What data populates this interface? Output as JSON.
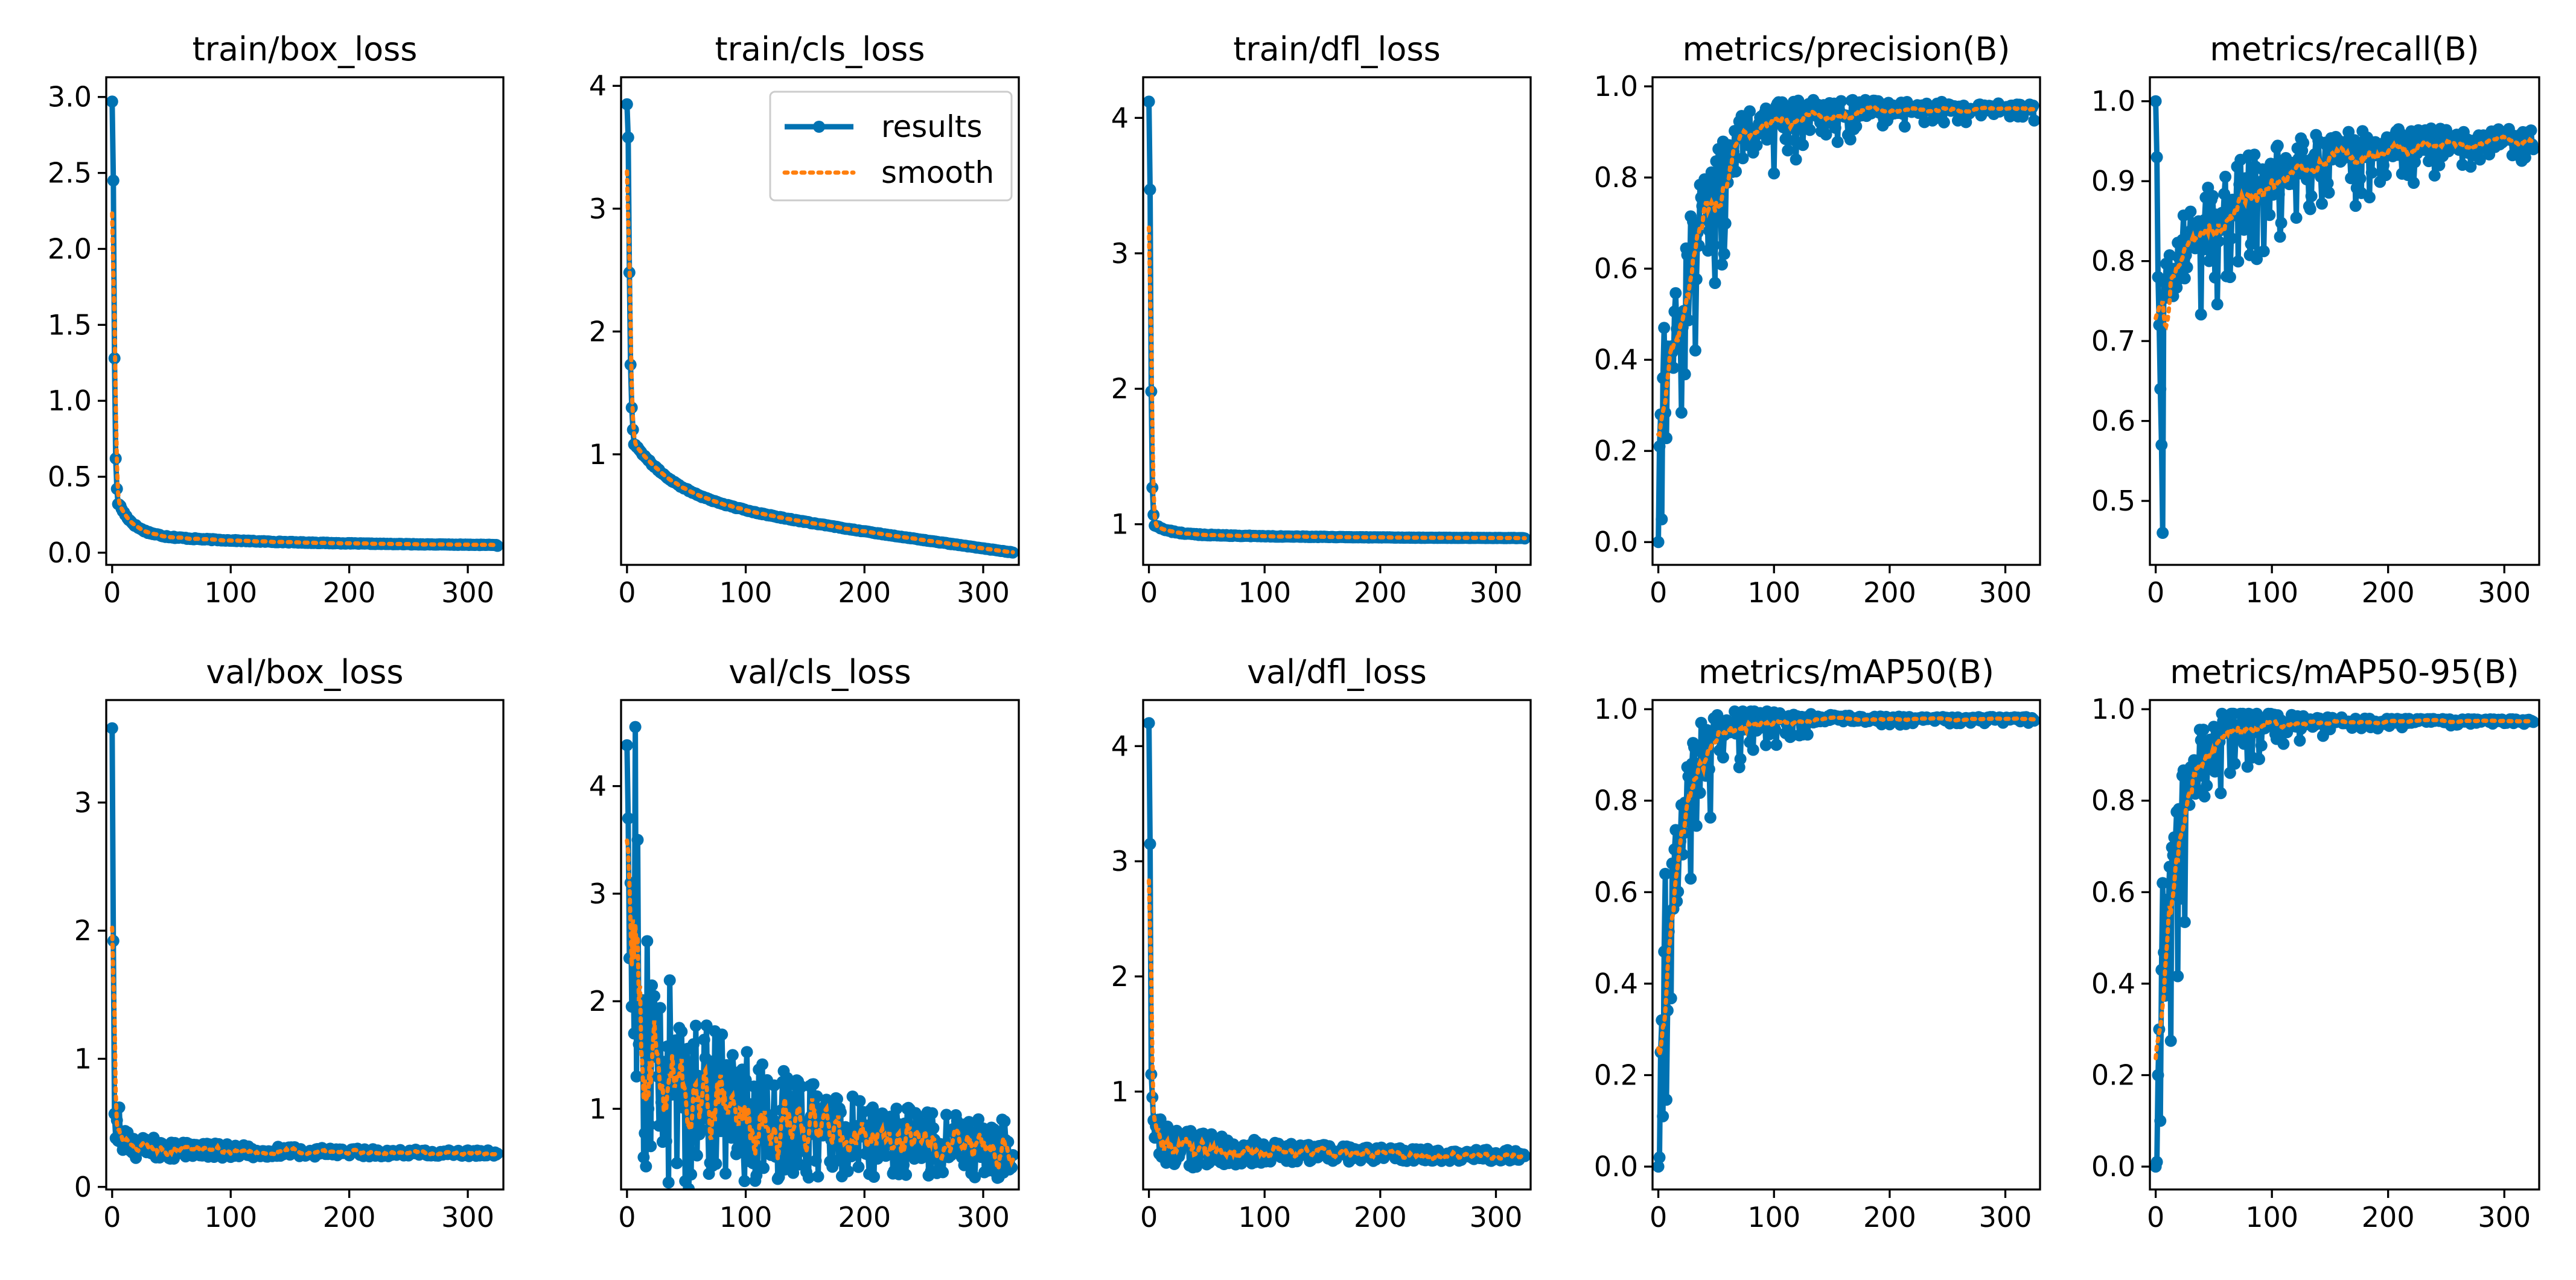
{
  "legend": {
    "results_label": "results",
    "smooth_label": "smooth",
    "results_color": "#0072b2",
    "smooth_color": "#ff7f0e"
  },
  "chart_data": [
    {
      "type": "line",
      "title": "train/box_loss",
      "xlim": [
        -5,
        330
      ],
      "ylim": [
        -0.08,
        3.13
      ],
      "xticks": [
        0,
        100,
        200,
        300
      ],
      "yticks": [
        0.0,
        0.5,
        1.0,
        1.5,
        2.0,
        2.5,
        3.0
      ],
      "ytick_labels": [
        "0.0",
        "0.5",
        "1.0",
        "1.5",
        "2.0",
        "2.5",
        "3.0"
      ],
      "shape": "decay",
      "start": [
        2.97,
        2.45,
        1.28,
        0.62,
        0.42,
        0.32
      ],
      "plateau": 0.12,
      "end": 0.045,
      "noise": 0.004,
      "series": [
        {
          "name": "results"
        },
        {
          "name": "smooth"
        }
      ]
    },
    {
      "type": "line",
      "title": "train/cls_loss",
      "xlim": [
        -5,
        330
      ],
      "ylim": [
        0.1,
        4.07
      ],
      "xticks": [
        0,
        100,
        200,
        300
      ],
      "yticks": [
        1,
        2,
        3,
        4
      ],
      "ytick_labels": [
        "1",
        "2",
        "3",
        "4"
      ],
      "shape": "decay",
      "start": [
        3.85,
        3.58,
        2.48,
        1.73,
        1.38,
        1.2,
        1.08
      ],
      "plateau": 0.72,
      "end": 0.2,
      "noise": 0.005,
      "slow": true,
      "series": [
        {
          "name": "results"
        },
        {
          "name": "smooth"
        }
      ]
    },
    {
      "type": "line",
      "title": "train/dfl_loss",
      "xlim": [
        -5,
        330
      ],
      "ylim": [
        0.7,
        4.3
      ],
      "xticks": [
        0,
        100,
        200,
        300
      ],
      "yticks": [
        1,
        2,
        3,
        4
      ],
      "ytick_labels": [
        "1",
        "2",
        "3",
        "4"
      ],
      "shape": "decay",
      "start": [
        4.12,
        3.47,
        1.98,
        1.27,
        1.07,
        0.99
      ],
      "plateau": 0.93,
      "end": 0.895,
      "noise": 0.003,
      "series": [
        {
          "name": "results"
        },
        {
          "name": "smooth"
        }
      ]
    },
    {
      "type": "line",
      "title": "metrics/precision(B)",
      "xlim": [
        -5,
        330
      ],
      "ylim": [
        -0.05,
        1.02
      ],
      "xticks": [
        0,
        100,
        200,
        300
      ],
      "yticks": [
        0.0,
        0.2,
        0.4,
        0.6,
        0.8,
        1.0
      ],
      "ytick_labels": [
        "0.0",
        "0.2",
        "0.4",
        "0.6",
        "0.8",
        "1.0"
      ],
      "shape": "rise",
      "start": [
        0.0,
        0.21,
        0.28,
        0.05,
        0.36,
        0.47
      ],
      "target": 0.955,
      "k": 30,
      "noise_amp": 0.24,
      "end": 0.925,
      "series": [
        {
          "name": "results"
        },
        {
          "name": "smooth"
        }
      ]
    },
    {
      "type": "line",
      "title": "metrics/recall(B)",
      "xlim": [
        -5,
        330
      ],
      "ylim": [
        0.42,
        1.03
      ],
      "xticks": [
        0,
        100,
        200,
        300
      ],
      "yticks": [
        0.5,
        0.6,
        0.7,
        0.8,
        0.9,
        1.0
      ],
      "ytick_labels": [
        "0.5",
        "0.6",
        "0.7",
        "0.8",
        "0.9",
        "1.0"
      ],
      "shape": "rise",
      "start": [
        1.0,
        0.93,
        0.78,
        0.72,
        0.64,
        0.57,
        0.46
      ],
      "base": 0.76,
      "target": 0.955,
      "k": 60,
      "noise_amp": 0.1,
      "end": 0.94,
      "series": [
        {
          "name": "results"
        },
        {
          "name": "smooth"
        }
      ]
    },
    {
      "type": "line",
      "title": "val/box_loss",
      "xlim": [
        -5,
        330
      ],
      "ylim": [
        -0.02,
        3.8
      ],
      "xticks": [
        0,
        100,
        200,
        300
      ],
      "yticks": [
        0,
        1,
        2,
        3
      ],
      "ytick_labels": [
        "0",
        "1",
        "2",
        "3"
      ],
      "shape": "decay",
      "start": [
        3.58,
        1.92,
        0.57,
        0.38,
        0.52,
        0.36,
        0.62,
        0.35
      ],
      "plateau": 0.3,
      "end": 0.26,
      "noise": 0.06,
      "series": [
        {
          "name": "results"
        },
        {
          "name": "smooth"
        }
      ]
    },
    {
      "type": "line",
      "title": "val/cls_loss",
      "xlim": [
        -5,
        330
      ],
      "ylim": [
        0.25,
        4.8
      ],
      "xticks": [
        0,
        100,
        200,
        300
      ],
      "yticks": [
        1,
        2,
        3,
        4
      ],
      "ytick_labels": [
        "1",
        "2",
        "3",
        "4"
      ],
      "shape": "decay",
      "start": [
        4.38,
        3.7,
        2.4,
        3.1,
        1.95,
        2.5,
        1.7,
        4.55,
        1.3,
        3.5,
        1.6
      ],
      "plateau": 1.3,
      "end": 0.57,
      "noise": 0.7,
      "series": [
        {
          "name": "results"
        },
        {
          "name": "smooth"
        }
      ]
    },
    {
      "type": "line",
      "title": "val/dfl_loss",
      "xlim": [
        -5,
        330
      ],
      "ylim": [
        0.15,
        4.4
      ],
      "xticks": [
        0,
        100,
        200,
        300
      ],
      "yticks": [
        1,
        2,
        3,
        4
      ],
      "ytick_labels": [
        "1",
        "2",
        "3",
        "4"
      ],
      "shape": "decay",
      "start": [
        4.2,
        3.15,
        1.15,
        0.95,
        0.75,
        0.6
      ],
      "plateau": 0.5,
      "end": 0.44,
      "noise": 0.12,
      "series": [
        {
          "name": "results"
        },
        {
          "name": "smooth"
        }
      ]
    },
    {
      "type": "line",
      "title": "metrics/mAP50(B)",
      "xlim": [
        -5,
        330
      ],
      "ylim": [
        -0.05,
        1.02
      ],
      "xticks": [
        0,
        100,
        200,
        300
      ],
      "yticks": [
        0.0,
        0.2,
        0.4,
        0.6,
        0.8,
        1.0
      ],
      "ytick_labels": [
        "0.0",
        "0.2",
        "0.4",
        "0.6",
        "0.8",
        "1.0"
      ],
      "shape": "rise",
      "start": [
        0.0,
        0.02,
        0.25,
        0.32,
        0.11,
        0.47,
        0.64
      ],
      "target": 0.98,
      "k": 14,
      "noise_amp": 0.3,
      "end": 0.975,
      "series": [
        {
          "name": "results"
        },
        {
          "name": "smooth"
        }
      ]
    },
    {
      "type": "line",
      "title": "metrics/mAP50-95(B)",
      "xlim": [
        -5,
        330
      ],
      "ylim": [
        -0.05,
        1.02
      ],
      "xticks": [
        0,
        100,
        200,
        300
      ],
      "yticks": [
        0.0,
        0.2,
        0.4,
        0.6,
        0.8,
        1.0
      ],
      "ytick_labels": [
        "0.0",
        "0.2",
        "0.4",
        "0.6",
        "0.8",
        "1.0"
      ],
      "shape": "rise",
      "start": [
        0.0,
        0.01,
        0.2,
        0.3,
        0.1,
        0.43,
        0.62
      ],
      "target": 0.975,
      "k": 15,
      "noise_amp": 0.3,
      "end": 0.972,
      "series": [
        {
          "name": "results"
        },
        {
          "name": "smooth"
        }
      ]
    }
  ]
}
